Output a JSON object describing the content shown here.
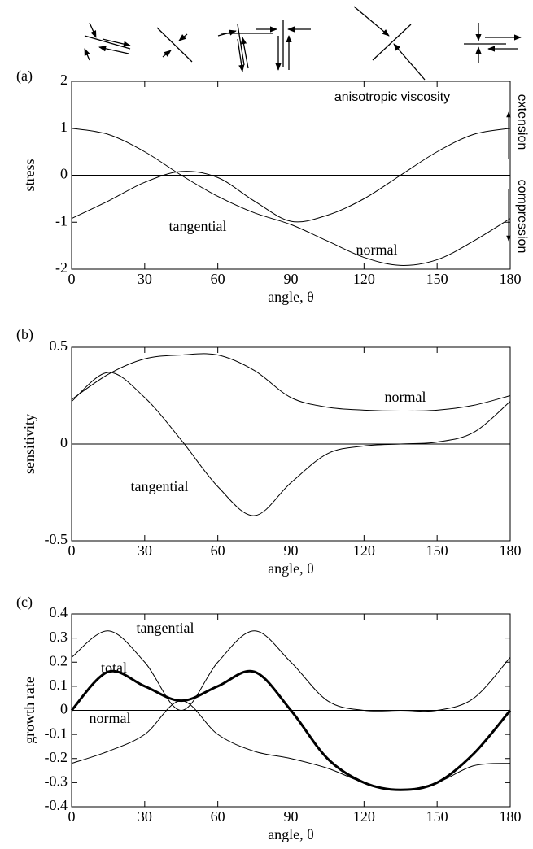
{
  "chart_data": [
    {
      "type": "line",
      "panel_label": "(a)",
      "y_label": "stress",
      "x_label": "angle, θ",
      "xlim": [
        0,
        180
      ],
      "xticks": [
        0,
        30,
        60,
        90,
        120,
        150,
        180
      ],
      "ylim": [
        -2,
        2
      ],
      "yticks": [
        -2,
        -1,
        0,
        1,
        2
      ],
      "hline": 0,
      "x": [
        0,
        15,
        30,
        45,
        60,
        75,
        90,
        105,
        120,
        135,
        150,
        165,
        180
      ],
      "series": [
        {
          "name": "tangential",
          "color": "#000000",
          "width": 1,
          "values": [
            -0.92,
            -0.55,
            -0.15,
            0.08,
            -0.05,
            -0.55,
            -0.98,
            -0.85,
            -0.5,
            0.0,
            0.5,
            0.87,
            1.0
          ]
        },
        {
          "name": "normal",
          "color": "#000000",
          "width": 1,
          "values": [
            1.0,
            0.87,
            0.5,
            0.0,
            -0.45,
            -0.8,
            -1.05,
            -1.4,
            -1.75,
            -1.92,
            -1.8,
            -1.4,
            -0.92
          ]
        }
      ],
      "annotations": [
        "anisotropic viscosity",
        "extension",
        "compression"
      ]
    },
    {
      "type": "line",
      "panel_label": "(b)",
      "y_label": "sensitivity",
      "x_label": "angle, θ",
      "xlim": [
        0,
        180
      ],
      "xticks": [
        0,
        30,
        60,
        90,
        120,
        150,
        180
      ],
      "ylim": [
        -0.5,
        0.5
      ],
      "yticks": [
        -0.5,
        0,
        0.5
      ],
      "hline": 0,
      "x": [
        0,
        15,
        30,
        45,
        60,
        75,
        90,
        105,
        120,
        135,
        150,
        165,
        180
      ],
      "series": [
        {
          "name": "normal",
          "color": "#000000",
          "width": 1,
          "values": [
            0.23,
            0.36,
            0.44,
            0.46,
            0.46,
            0.38,
            0.24,
            0.19,
            0.175,
            0.17,
            0.175,
            0.2,
            0.25
          ]
        },
        {
          "name": "tangential",
          "color": "#000000",
          "width": 1,
          "values": [
            0.22,
            0.37,
            0.24,
            0.02,
            -0.22,
            -0.37,
            -0.2,
            -0.05,
            -0.01,
            0,
            0.01,
            0.06,
            0.22
          ]
        }
      ]
    },
    {
      "type": "line",
      "panel_label": "(c)",
      "y_label": "growth rate",
      "x_label": "angle, θ",
      "xlim": [
        0,
        180
      ],
      "xticks": [
        0,
        30,
        60,
        90,
        120,
        150,
        180
      ],
      "ylim": [
        -0.4,
        0.4
      ],
      "yticks": [
        -0.4,
        -0.3,
        -0.2,
        -0.1,
        0,
        0.1,
        0.2,
        0.3,
        0.4
      ],
      "hline": 0,
      "x": [
        0,
        15,
        30,
        45,
        60,
        75,
        90,
        105,
        120,
        135,
        150,
        165,
        180
      ],
      "series": [
        {
          "name": "tangential",
          "color": "#000000",
          "width": 1,
          "values": [
            0.22,
            0.33,
            0.2,
            0.0,
            0.2,
            0.33,
            0.2,
            0.04,
            0.0,
            0.0,
            0.0,
            0.05,
            0.22
          ]
        },
        {
          "name": "total",
          "color": "#000000",
          "width": 3,
          "values": [
            0,
            0.16,
            0.1,
            0.04,
            0.1,
            0.16,
            0.0,
            -0.2,
            -0.3,
            -0.33,
            -0.3,
            -0.18,
            0
          ]
        },
        {
          "name": "normal",
          "color": "#000000",
          "width": 1,
          "values": [
            -0.22,
            -0.17,
            -0.1,
            0.04,
            -0.1,
            -0.17,
            -0.2,
            -0.24,
            -0.3,
            -0.33,
            -0.3,
            -0.23,
            -0.22
          ]
        }
      ]
    }
  ]
}
